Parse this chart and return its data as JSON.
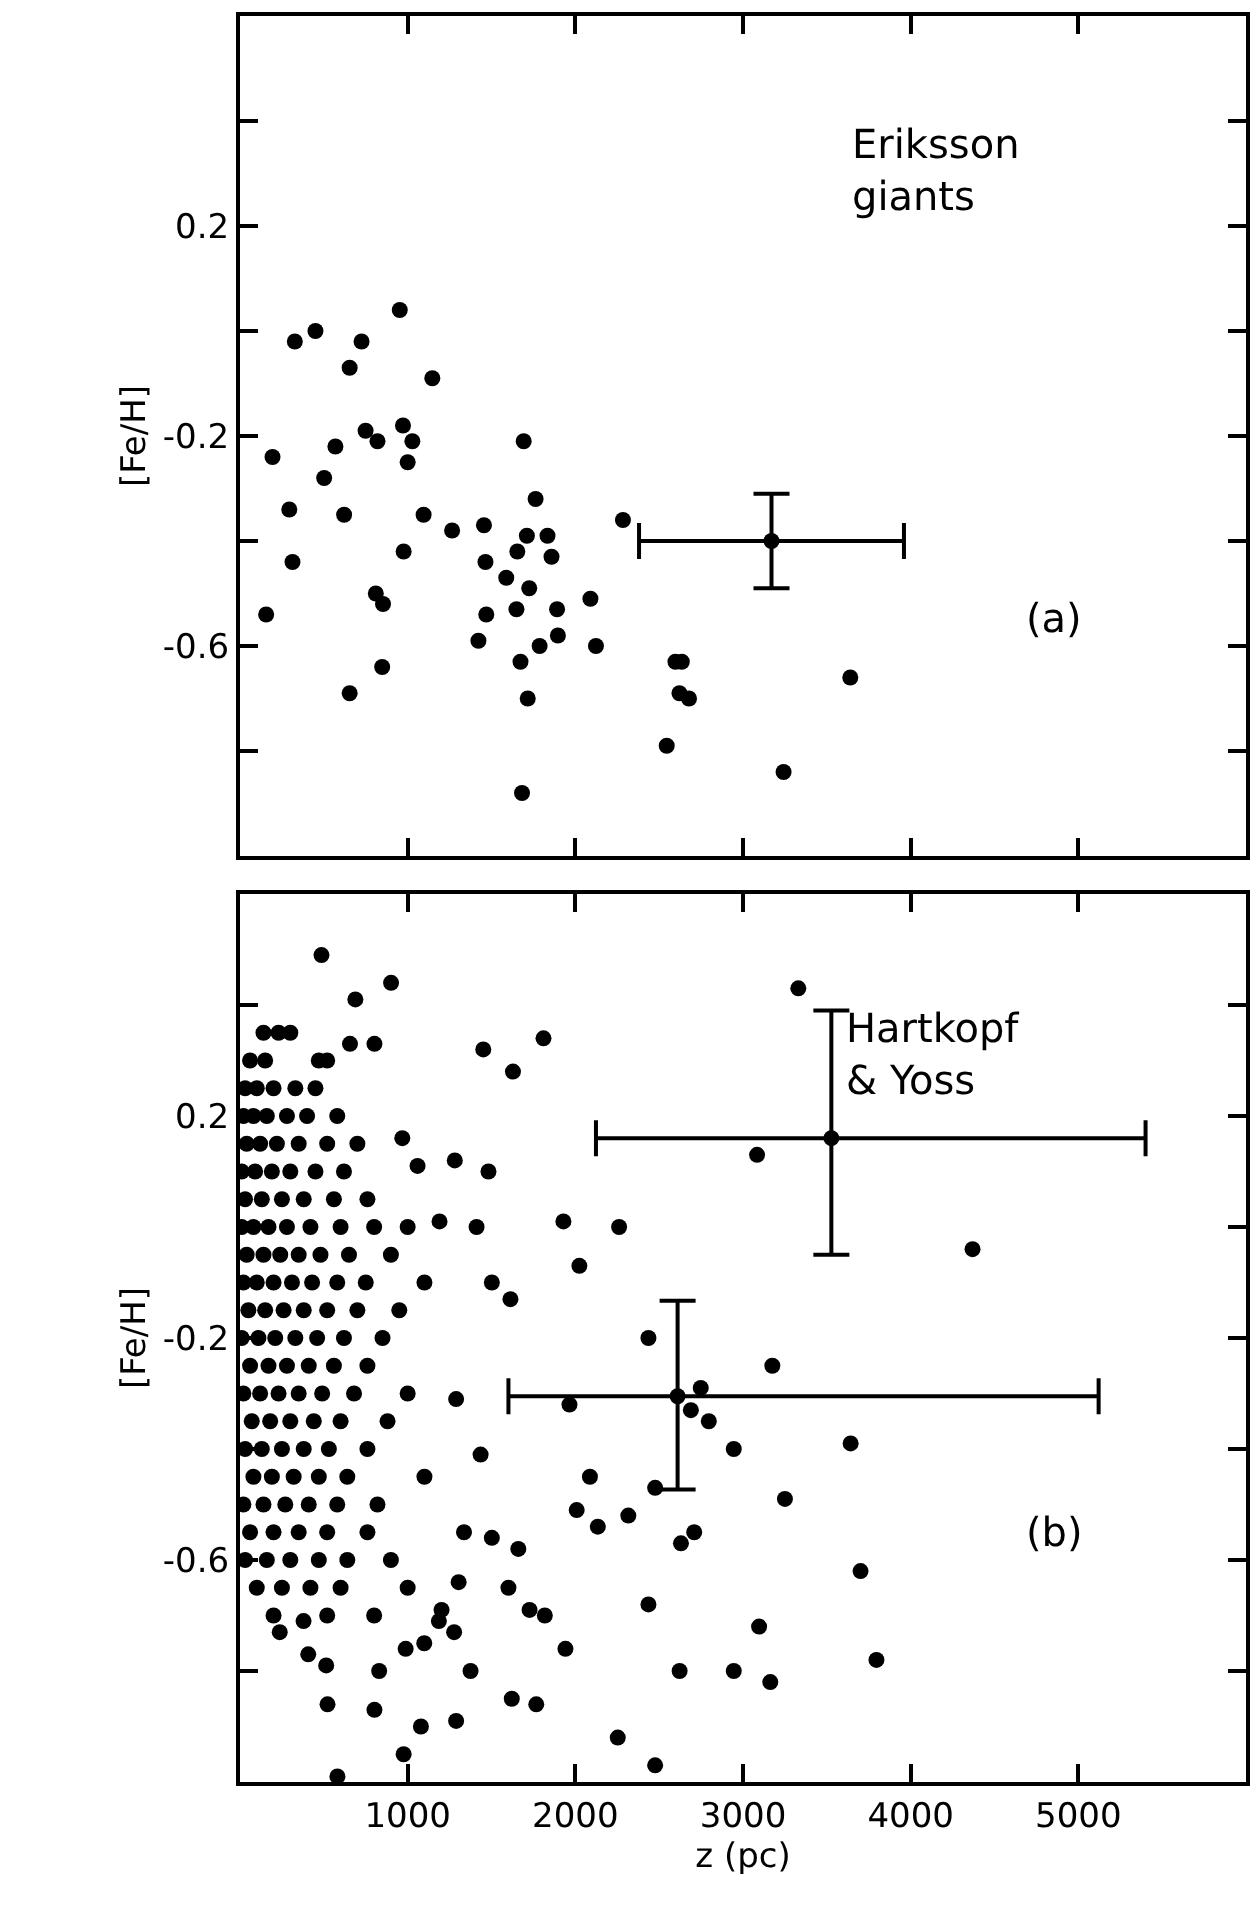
{
  "chart_data": [
    {
      "type": "scatter",
      "ylabel": "[Fe/H]",
      "annotations": [
        "Eriksson\ngiants",
        "(a)"
      ],
      "xlim": [
        0,
        6000
      ],
      "ylim": [
        -1.0,
        0.6
      ],
      "xticks": [
        1000,
        2000,
        3000,
        4000,
        5000
      ],
      "yticks": [
        {
          "value": 0.4,
          "label": null
        },
        0.2,
        {
          "value": 0,
          "label": null
        },
        -0.2,
        {
          "value": -0.4,
          "label": null
        },
        -0.6,
        {
          "value": -0.8,
          "label": null
        }
      ],
      "tick_labels": "y",
      "marker": "circle",
      "series": [
        {
          "color": "#000000",
          "x": [
            156,
            194,
            294,
            313,
            327,
            450,
            502,
            569,
            621,
            654,
            654,
            725,
            749,
            820,
            810,
            853,
            848,
            953,
            972,
            1028,
            1000,
            976,
            1095,
            1147,
            1265,
            1422,
            1455,
            1464,
            1469,
            1588,
            1649,
            1654,
            1673,
            1692,
            1711,
            1716,
            1725,
            1682,
            1763,
            1787,
            1834,
            1858,
            1891,
            1896,
            2090,
            2123,
            2284,
            2545,
            2597,
            2635,
            2621,
            2678,
            3242,
            3640
          ],
          "values": [
            -0.54,
            -0.24,
            -0.34,
            -0.44,
            -0.02,
            0.0,
            -0.28,
            -0.22,
            -0.35,
            -0.69,
            -0.07,
            -0.02,
            -0.19,
            -0.21,
            -0.5,
            -0.52,
            -0.64,
            0.04,
            -0.18,
            -0.21,
            -0.25,
            -0.42,
            -0.35,
            -0.09,
            -0.38,
            -0.59,
            -0.37,
            -0.44,
            -0.54,
            -0.47,
            -0.53,
            -0.42,
            -0.63,
            -0.21,
            -0.39,
            -0.7,
            -0.49,
            -0.88,
            -0.32,
            -0.6,
            -0.39,
            -0.43,
            -0.53,
            -0.58,
            -0.51,
            -0.6,
            -0.36,
            -0.79,
            -0.63,
            -0.63,
            -0.69,
            -0.7,
            -0.84,
            -0.66
          ]
        },
        {
          "color": "#000000",
          "x": [
            3170
          ],
          "values": [
            -0.4
          ],
          "errors": [
            0.09
          ],
          "xerrors": [
            790
          ]
        }
      ]
    },
    {
      "type": "scatter",
      "xlabel": "z (pc)",
      "ylabel": "[Fe/H]",
      "annotations": [
        "Hartkopf\n& Yoss",
        "(b)"
      ],
      "xlim": [
        0,
        6000
      ],
      "ylim": [
        -1.0,
        0.6
      ],
      "xticks": [
        1000,
        2000,
        3000,
        4000,
        5000
      ],
      "yticks": [
        {
          "value": 0.4,
          "label": null
        },
        0.2,
        {
          "value": 0,
          "label": null
        },
        -0.2,
        {
          "value": -0.4,
          "label": null
        },
        -0.6,
        {
          "value": -0.8,
          "label": null
        }
      ],
      "marker": "circle",
      "series": [
        {
          "color": "#000000",
          "x": [
            486,
            901,
            688,
            656,
            802,
            1451,
            1810,
            1628,
            968,
            1059,
            1281,
            1482,
            1929,
            2261,
            2024,
            1411,
            1190,
            1502,
            1613,
            1289,
            1435,
            1965,
            2087,
            2008,
            2134,
            2316,
            1660,
            1818,
            1727,
            1601,
            1941,
            1621,
            1767,
            2253,
            1289,
            1079,
            976,
            581,
            802,
            522,
            237,
            379,
            407,
            514,
            830,
            988,
            1099,
            1186,
            1375,
            1277,
            1202,
            1304,
            1502,
            1336,
            3330,
            3084,
            4369,
            2436,
            3175,
            2748,
            2689,
            2796,
            2945,
            3642,
            2476,
            3250,
            2630,
            2709,
            3701,
            2436,
            3096,
            2622,
            2945,
            3163,
            3796,
            2476,
            140,
            230,
            300,
            60,
            150,
            470,
            520,
            30,
            100,
            200,
            330,
            450,
            20,
            80,
            160,
            280,
            400,
            580,
            40,
            120,
            220,
            350,
            520,
            700,
            10,
            90,
            190,
            300,
            450,
            620,
            30,
            130,
            250,
            380,
            560,
            760,
            10,
            80,
            170,
            280,
            420,
            600,
            800,
            1000,
            40,
            140,
            240,
            350,
            480,
            650,
            900,
            20,
            100,
            200,
            310,
            430,
            580,
            750,
            1100,
            50,
            150,
            260,
            380,
            520,
            700,
            950,
            10,
            110,
            210,
            330,
            460,
            620,
            850,
            60,
            170,
            280,
            410,
            560,
            760,
            20,
            120,
            230,
            350,
            490,
            680,
            1000,
            70,
            180,
            300,
            440,
            600,
            880,
            30,
            130,
            250,
            380,
            530,
            760,
            80,
            190,
            320,
            470,
            640,
            1100,
            20,
            140,
            270,
            410,
            580,
            820,
            60,
            200,
            350,
            520,
            760,
            30,
            160,
            300,
            470,
            640,
            900,
            100,
            250,
            420,
            600,
            1000,
            200,
            520,
            800
          ],
          "values": [
            0.49,
            0.44,
            0.41,
            0.33,
            0.33,
            0.32,
            0.34,
            0.28,
            0.16,
            0.11,
            0.12,
            0.1,
            0.01,
            0.0,
            -0.07,
            0.0,
            0.01,
            -0.1,
            -0.13,
            -0.31,
            -0.41,
            -0.32,
            -0.45,
            -0.51,
            -0.54,
            -0.52,
            -0.58,
            -0.7,
            -0.69,
            -0.65,
            -0.76,
            -0.85,
            -0.86,
            -0.92,
            -0.89,
            -0.9,
            -0.95,
            -0.99,
            -0.87,
            -0.86,
            -0.73,
            -0.71,
            -0.77,
            -0.79,
            -0.8,
            -0.76,
            -0.75,
            -0.71,
            -0.8,
            -0.73,
            -0.69,
            -0.64,
            -0.56,
            -0.55,
            0.43,
            0.13,
            -0.04,
            -0.2,
            -0.25,
            -0.29,
            -0.33,
            -0.35,
            -0.4,
            -0.39,
            -0.47,
            -0.49,
            -0.57,
            -0.55,
            -0.62,
            -0.68,
            -0.72,
            -0.8,
            -0.8,
            -0.82,
            -0.78,
            -0.97,
            0.35,
            0.35,
            0.35,
            0.3,
            0.3,
            0.3,
            0.3,
            0.25,
            0.25,
            0.25,
            0.25,
            0.25,
            0.2,
            0.2,
            0.2,
            0.2,
            0.2,
            0.2,
            0.15,
            0.15,
            0.15,
            0.15,
            0.15,
            0.15,
            0.1,
            0.1,
            0.1,
            0.1,
            0.1,
            0.1,
            0.05,
            0.05,
            0.05,
            0.05,
            0.05,
            0.05,
            0.0,
            0.0,
            0.0,
            0.0,
            0.0,
            0.0,
            0.0,
            0.0,
            -0.05,
            -0.05,
            -0.05,
            -0.05,
            -0.05,
            -0.05,
            -0.05,
            -0.1,
            -0.1,
            -0.1,
            -0.1,
            -0.1,
            -0.1,
            -0.1,
            -0.1,
            -0.15,
            -0.15,
            -0.15,
            -0.15,
            -0.15,
            -0.15,
            -0.15,
            -0.2,
            -0.2,
            -0.2,
            -0.2,
            -0.2,
            -0.2,
            -0.2,
            -0.25,
            -0.25,
            -0.25,
            -0.25,
            -0.25,
            -0.25,
            -0.3,
            -0.3,
            -0.3,
            -0.3,
            -0.3,
            -0.3,
            -0.3,
            -0.35,
            -0.35,
            -0.35,
            -0.35,
            -0.35,
            -0.35,
            -0.4,
            -0.4,
            -0.4,
            -0.4,
            -0.4,
            -0.4,
            -0.45,
            -0.45,
            -0.45,
            -0.45,
            -0.45,
            -0.45,
            -0.5,
            -0.5,
            -0.5,
            -0.5,
            -0.5,
            -0.5,
            -0.55,
            -0.55,
            -0.55,
            -0.55,
            -0.55,
            -0.6,
            -0.6,
            -0.6,
            -0.6,
            -0.6,
            -0.6,
            -0.65,
            -0.65,
            -0.65,
            -0.65,
            -0.65,
            -0.7,
            -0.7,
            -0.7
          ]
        },
        {
          "color": "#000000",
          "x": [
            3527
          ],
          "values": [
            0.16
          ],
          "errors": [
            [
              -0.05,
              0.39
            ]
          ],
          "xerrors": [
            [
              2123,
              5401
            ]
          ]
        },
        {
          "color": "#000000",
          "x": [
            2610
          ],
          "values": [
            -0.305
          ],
          "errors": [
            [
              -0.473,
              -0.133
            ]
          ],
          "xerrors": [
            [
              1601,
              5121
            ]
          ]
        }
      ]
    }
  ]
}
